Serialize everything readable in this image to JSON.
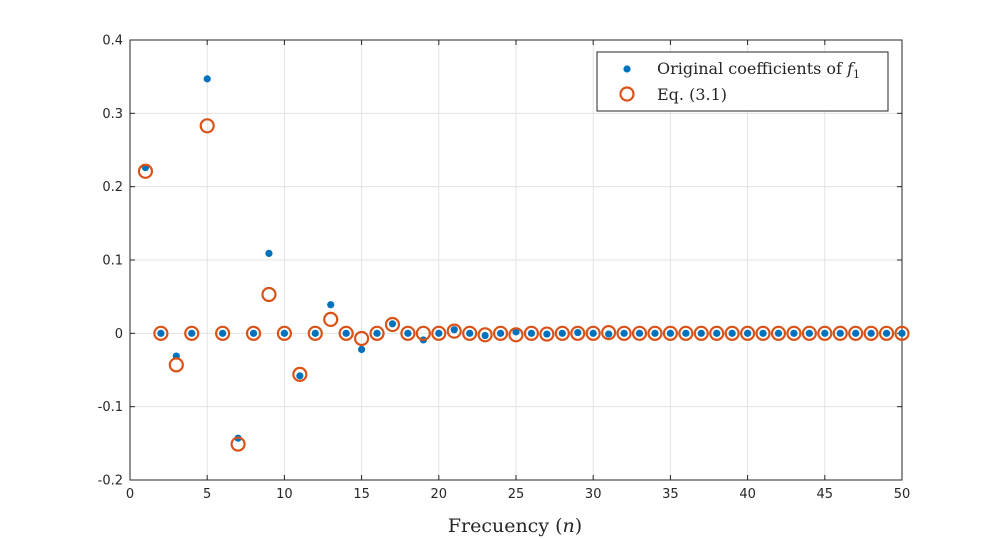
{
  "chart_data": {
    "type": "scatter",
    "title": "",
    "xlabel": "Frecuency",
    "xlabel_var": "n",
    "ylabel": "",
    "xlim": [
      0,
      50
    ],
    "ylim": [
      -0.2,
      0.4
    ],
    "xticks": [
      0,
      5,
      10,
      15,
      20,
      25,
      30,
      35,
      40,
      45,
      50
    ],
    "yticks": [
      -0.2,
      -0.1,
      0,
      0.1,
      0.2,
      0.3,
      0.4
    ],
    "ytick_labels": [
      "-0.2",
      "-0.1",
      "0",
      "0.1",
      "0.2",
      "0.3",
      "0.4"
    ],
    "grid": true,
    "legend_position": "top-right",
    "x": [
      1,
      2,
      3,
      4,
      5,
      6,
      7,
      8,
      9,
      10,
      11,
      12,
      13,
      14,
      15,
      16,
      17,
      18,
      19,
      20,
      21,
      22,
      23,
      24,
      25,
      26,
      27,
      28,
      29,
      30,
      31,
      32,
      33,
      34,
      35,
      36,
      37,
      38,
      39,
      40,
      41,
      42,
      43,
      44,
      45,
      46,
      47,
      48,
      49,
      50
    ],
    "series": [
      {
        "name": "Original coefficients of",
        "name_math": "f",
        "name_sub": "1",
        "marker": "filled-dot",
        "color": "#0072BD",
        "values": [
          0.226,
          0,
          -0.031,
          0,
          0.347,
          0,
          -0.143,
          0,
          0.109,
          0,
          -0.058,
          0,
          0.039,
          0,
          -0.022,
          0,
          0.013,
          0,
          -0.009,
          0,
          0.005,
          0,
          -0.003,
          0,
          0.002,
          0,
          -0.001,
          0,
          0.001,
          0,
          -0.001,
          0,
          0,
          0,
          0,
          0,
          0,
          0,
          0,
          0,
          0,
          0,
          0,
          0,
          0,
          0,
          0,
          0,
          0,
          0
        ]
      },
      {
        "name": "Eq. (3.1)",
        "marker": "open-circle",
        "color": "#D95319",
        "values": [
          0.221,
          0,
          -0.043,
          0,
          0.283,
          0,
          -0.151,
          0,
          0.053,
          0,
          -0.056,
          0,
          0.019,
          0,
          -0.007,
          0,
          0.012,
          0,
          0,
          0,
          0.003,
          0,
          -0.002,
          0,
          -0.002,
          0,
          -0.001,
          0,
          0,
          0,
          0.001,
          0,
          0,
          0,
          0,
          0,
          0,
          0,
          0,
          0,
          0,
          0,
          0,
          0,
          0,
          0,
          0,
          0,
          0,
          0
        ]
      }
    ]
  }
}
